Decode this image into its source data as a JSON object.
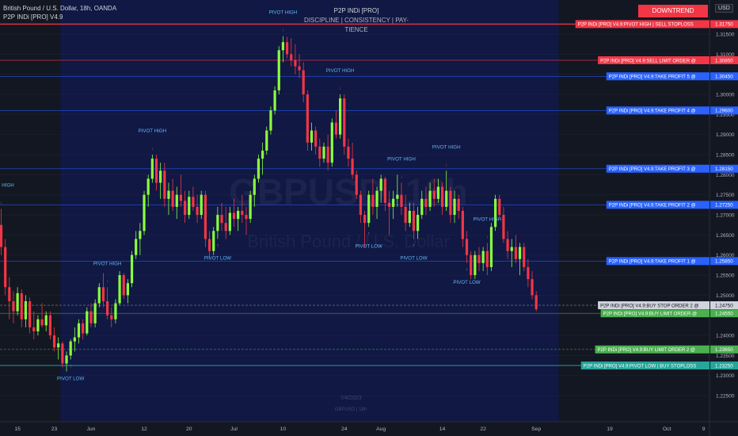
{
  "header": {
    "symbol_line": "British Pound / U.S. Dollar, 18h, OANDA",
    "indicator_line": "P2P INDi [PRO] V4.9",
    "indicator_title": "P2P INDi [PRO]",
    "motto": "DISCIPLINE  |  CONSISTENCY  |  PAY-TIENCE",
    "trend_badge": "DOWNTREND",
    "currency": "USD"
  },
  "colors": {
    "background": "#131722",
    "highlight": "#0e1a5e",
    "bull": "#8bff3c",
    "bear": "#f23645",
    "downtrend": "#f23645",
    "tp_blue": "#2962ff",
    "buy_green": "#4caf50",
    "buy_stoploss_teal": "#26a69a"
  },
  "chart_data": {
    "type": "candlestick",
    "symbol": "GBPUSD",
    "timeframe": "18h",
    "watermark": "GBPUSD, 18h",
    "watermark_sub": "British Pound / U.S. Dollar",
    "footer_date": "7/4/2023",
    "footer_sub": "GBPUSD | 18h",
    "ylim": [
      1.2185,
      1.3235
    ],
    "y_ticks": [
      "1.31500",
      "1.31000",
      "1.30500",
      "1.30000",
      "1.29500",
      "1.29000",
      "1.28500",
      "1.28000",
      "1.27500",
      "1.27000",
      "1.26500",
      "1.26000",
      "1.25500",
      "1.25000",
      "1.24500",
      "1.24000",
      "1.23500",
      "1.23000",
      "1.22500"
    ],
    "x_ticks": [
      {
        "label": "15",
        "i": 4
      },
      {
        "label": "23",
        "i": 13
      },
      {
        "label": "Jun",
        "i": 22
      },
      {
        "label": "12",
        "i": 35
      },
      {
        "label": "20",
        "i": 46
      },
      {
        "label": "Jul",
        "i": 57
      },
      {
        "label": "10",
        "i": 69
      },
      {
        "label": "24",
        "i": 84
      },
      {
        "label": "Aug",
        "i": 93
      },
      {
        "label": "14",
        "i": 108
      },
      {
        "label": "22",
        "i": 118
      },
      {
        "label": "Sep",
        "i": 131
      },
      {
        "label": "19",
        "i": 149
      },
      {
        "label": "Oct",
        "i": 163
      },
      {
        "label": "9",
        "i": 172
      }
    ],
    "highlight_range": [
      15,
      136
    ],
    "candles": [
      {
        "o": 1.2675,
        "h": 1.2715,
        "l": 1.26,
        "c": 1.262
      },
      {
        "o": 1.262,
        "h": 1.264,
        "l": 1.25,
        "c": 1.252
      },
      {
        "o": 1.252,
        "h": 1.2545,
        "l": 1.244,
        "c": 1.2485
      },
      {
        "o": 1.2485,
        "h": 1.251,
        "l": 1.243,
        "c": 1.246
      },
      {
        "o": 1.246,
        "h": 1.252,
        "l": 1.245,
        "c": 1.2505
      },
      {
        "o": 1.2505,
        "h": 1.2515,
        "l": 1.242,
        "c": 1.244
      },
      {
        "o": 1.244,
        "h": 1.25,
        "l": 1.242,
        "c": 1.2485
      },
      {
        "o": 1.2485,
        "h": 1.2495,
        "l": 1.2405,
        "c": 1.242
      },
      {
        "o": 1.242,
        "h": 1.246,
        "l": 1.239,
        "c": 1.241
      },
      {
        "o": 1.241,
        "h": 1.245,
        "l": 1.24,
        "c": 1.244
      },
      {
        "o": 1.244,
        "h": 1.248,
        "l": 1.242,
        "c": 1.2425
      },
      {
        "o": 1.2425,
        "h": 1.246,
        "l": 1.241,
        "c": 1.245
      },
      {
        "o": 1.245,
        "h": 1.246,
        "l": 1.239,
        "c": 1.24
      },
      {
        "o": 1.24,
        "h": 1.242,
        "l": 1.236,
        "c": 1.237
      },
      {
        "o": 1.237,
        "h": 1.2395,
        "l": 1.234,
        "c": 1.238
      },
      {
        "o": 1.238,
        "h": 1.2385,
        "l": 1.232,
        "c": 1.233
      },
      {
        "o": 1.233,
        "h": 1.236,
        "l": 1.231,
        "c": 1.235
      },
      {
        "o": 1.235,
        "h": 1.239,
        "l": 1.234,
        "c": 1.2385
      },
      {
        "o": 1.2385,
        "h": 1.242,
        "l": 1.236,
        "c": 1.2395
      },
      {
        "o": 1.2395,
        "h": 1.244,
        "l": 1.238,
        "c": 1.243
      },
      {
        "o": 1.243,
        "h": 1.244,
        "l": 1.239,
        "c": 1.2405
      },
      {
        "o": 1.2405,
        "h": 1.247,
        "l": 1.24,
        "c": 1.246
      },
      {
        "o": 1.246,
        "h": 1.248,
        "l": 1.242,
        "c": 1.243
      },
      {
        "o": 1.243,
        "h": 1.249,
        "l": 1.242,
        "c": 1.248
      },
      {
        "o": 1.248,
        "h": 1.253,
        "l": 1.247,
        "c": 1.252
      },
      {
        "o": 1.252,
        "h": 1.2555,
        "l": 1.247,
        "c": 1.2485
      },
      {
        "o": 1.2485,
        "h": 1.252,
        "l": 1.244,
        "c": 1.245
      },
      {
        "o": 1.245,
        "h": 1.247,
        "l": 1.242,
        "c": 1.244
      },
      {
        "o": 1.244,
        "h": 1.249,
        "l": 1.243,
        "c": 1.248
      },
      {
        "o": 1.248,
        "h": 1.256,
        "l": 1.2475,
        "c": 1.255
      },
      {
        "o": 1.255,
        "h": 1.2555,
        "l": 1.249,
        "c": 1.25
      },
      {
        "o": 1.25,
        "h": 1.254,
        "l": 1.248,
        "c": 1.253
      },
      {
        "o": 1.253,
        "h": 1.261,
        "l": 1.252,
        "c": 1.26
      },
      {
        "o": 1.26,
        "h": 1.266,
        "l": 1.259,
        "c": 1.264
      },
      {
        "o": 1.264,
        "h": 1.268,
        "l": 1.26,
        "c": 1.266
      },
      {
        "o": 1.266,
        "h": 1.276,
        "l": 1.265,
        "c": 1.275
      },
      {
        "o": 1.275,
        "h": 1.28,
        "l": 1.272,
        "c": 1.279
      },
      {
        "o": 1.279,
        "h": 1.285,
        "l": 1.278,
        "c": 1.284
      },
      {
        "o": 1.284,
        "h": 1.285,
        "l": 1.276,
        "c": 1.278
      },
      {
        "o": 1.278,
        "h": 1.283,
        "l": 1.274,
        "c": 1.281
      },
      {
        "o": 1.281,
        "h": 1.283,
        "l": 1.272,
        "c": 1.274
      },
      {
        "o": 1.274,
        "h": 1.278,
        "l": 1.27,
        "c": 1.276
      },
      {
        "o": 1.276,
        "h": 1.279,
        "l": 1.271,
        "c": 1.272
      },
      {
        "o": 1.272,
        "h": 1.277,
        "l": 1.269,
        "c": 1.275
      },
      {
        "o": 1.275,
        "h": 1.28,
        "l": 1.272,
        "c": 1.2735
      },
      {
        "o": 1.2735,
        "h": 1.276,
        "l": 1.268,
        "c": 1.27
      },
      {
        "o": 1.27,
        "h": 1.276,
        "l": 1.269,
        "c": 1.2745
      },
      {
        "o": 1.2745,
        "h": 1.277,
        "l": 1.271,
        "c": 1.272
      },
      {
        "o": 1.272,
        "h": 1.275,
        "l": 1.268,
        "c": 1.27
      },
      {
        "o": 1.27,
        "h": 1.276,
        "l": 1.269,
        "c": 1.275
      },
      {
        "o": 1.275,
        "h": 1.276,
        "l": 1.262,
        "c": 1.264
      },
      {
        "o": 1.264,
        "h": 1.266,
        "l": 1.259,
        "c": 1.261
      },
      {
        "o": 1.261,
        "h": 1.267,
        "l": 1.26,
        "c": 1.266
      },
      {
        "o": 1.266,
        "h": 1.272,
        "l": 1.264,
        "c": 1.27
      },
      {
        "o": 1.27,
        "h": 1.273,
        "l": 1.266,
        "c": 1.268
      },
      {
        "o": 1.268,
        "h": 1.272,
        "l": 1.264,
        "c": 1.266
      },
      {
        "o": 1.266,
        "h": 1.272,
        "l": 1.265,
        "c": 1.2705
      },
      {
        "o": 1.2705,
        "h": 1.274,
        "l": 1.267,
        "c": 1.269
      },
      {
        "o": 1.269,
        "h": 1.272,
        "l": 1.266,
        "c": 1.271
      },
      {
        "o": 1.271,
        "h": 1.275,
        "l": 1.268,
        "c": 1.27
      },
      {
        "o": 1.27,
        "h": 1.272,
        "l": 1.265,
        "c": 1.269
      },
      {
        "o": 1.269,
        "h": 1.276,
        "l": 1.268,
        "c": 1.275
      },
      {
        "o": 1.275,
        "h": 1.28,
        "l": 1.272,
        "c": 1.279
      },
      {
        "o": 1.279,
        "h": 1.285,
        "l": 1.278,
        "c": 1.284
      },
      {
        "o": 1.284,
        "h": 1.288,
        "l": 1.28,
        "c": 1.286
      },
      {
        "o": 1.286,
        "h": 1.292,
        "l": 1.285,
        "c": 1.291
      },
      {
        "o": 1.291,
        "h": 1.297,
        "l": 1.29,
        "c": 1.296
      },
      {
        "o": 1.296,
        "h": 1.302,
        "l": 1.295,
        "c": 1.301
      },
      {
        "o": 1.301,
        "h": 1.312,
        "l": 1.3,
        "c": 1.311
      },
      {
        "o": 1.311,
        "h": 1.3145,
        "l": 1.308,
        "c": 1.313
      },
      {
        "o": 1.313,
        "h": 1.3143,
        "l": 1.309,
        "c": 1.31
      },
      {
        "o": 1.31,
        "h": 1.314,
        "l": 1.307,
        "c": 1.3085
      },
      {
        "o": 1.3085,
        "h": 1.3125,
        "l": 1.305,
        "c": 1.307
      },
      {
        "o": 1.307,
        "h": 1.31,
        "l": 1.304,
        "c": 1.306
      },
      {
        "o": 1.306,
        "h": 1.308,
        "l": 1.298,
        "c": 1.3
      },
      {
        "o": 1.3,
        "h": 1.301,
        "l": 1.286,
        "c": 1.288
      },
      {
        "o": 1.288,
        "h": 1.293,
        "l": 1.286,
        "c": 1.291
      },
      {
        "o": 1.291,
        "h": 1.292,
        "l": 1.285,
        "c": 1.287
      },
      {
        "o": 1.287,
        "h": 1.289,
        "l": 1.282,
        "c": 1.284
      },
      {
        "o": 1.284,
        "h": 1.288,
        "l": 1.283,
        "c": 1.287
      },
      {
        "o": 1.287,
        "h": 1.29,
        "l": 1.281,
        "c": 1.283
      },
      {
        "o": 1.283,
        "h": 1.294,
        "l": 1.282,
        "c": 1.293
      },
      {
        "o": 1.293,
        "h": 1.296,
        "l": 1.289,
        "c": 1.29
      },
      {
        "o": 1.29,
        "h": 1.3,
        "l": 1.289,
        "c": 1.299
      },
      {
        "o": 1.299,
        "h": 1.3,
        "l": 1.285,
        "c": 1.287
      },
      {
        "o": 1.287,
        "h": 1.289,
        "l": 1.282,
        "c": 1.284
      },
      {
        "o": 1.284,
        "h": 1.288,
        "l": 1.279,
        "c": 1.28
      },
      {
        "o": 1.28,
        "h": 1.281,
        "l": 1.274,
        "c": 1.275
      },
      {
        "o": 1.275,
        "h": 1.276,
        "l": 1.268,
        "c": 1.27
      },
      {
        "o": 1.27,
        "h": 1.271,
        "l": 1.262,
        "c": 1.268
      },
      {
        "o": 1.268,
        "h": 1.276,
        "l": 1.267,
        "c": 1.275
      },
      {
        "o": 1.275,
        "h": 1.279,
        "l": 1.27,
        "c": 1.272
      },
      {
        "o": 1.272,
        "h": 1.277,
        "l": 1.269,
        "c": 1.276
      },
      {
        "o": 1.276,
        "h": 1.28,
        "l": 1.273,
        "c": 1.279
      },
      {
        "o": 1.279,
        "h": 1.2795,
        "l": 1.271,
        "c": 1.273
      },
      {
        "o": 1.273,
        "h": 1.276,
        "l": 1.265,
        "c": 1.272
      },
      {
        "o": 1.272,
        "h": 1.276,
        "l": 1.269,
        "c": 1.274
      },
      {
        "o": 1.274,
        "h": 1.28,
        "l": 1.272,
        "c": 1.275
      },
      {
        "o": 1.275,
        "h": 1.278,
        "l": 1.27,
        "c": 1.272
      },
      {
        "o": 1.272,
        "h": 1.275,
        "l": 1.266,
        "c": 1.268
      },
      {
        "o": 1.268,
        "h": 1.273,
        "l": 1.267,
        "c": 1.271
      },
      {
        "o": 1.271,
        "h": 1.273,
        "l": 1.264,
        "c": 1.266
      },
      {
        "o": 1.266,
        "h": 1.272,
        "l": 1.264,
        "c": 1.27
      },
      {
        "o": 1.27,
        "h": 1.276,
        "l": 1.269,
        "c": 1.274
      },
      {
        "o": 1.274,
        "h": 1.277,
        "l": 1.27,
        "c": 1.272
      },
      {
        "o": 1.272,
        "h": 1.278,
        "l": 1.271,
        "c": 1.276
      },
      {
        "o": 1.276,
        "h": 1.279,
        "l": 1.272,
        "c": 1.274
      },
      {
        "o": 1.274,
        "h": 1.279,
        "l": 1.273,
        "c": 1.277
      },
      {
        "o": 1.277,
        "h": 1.278,
        "l": 1.27,
        "c": 1.272
      },
      {
        "o": 1.272,
        "h": 1.281,
        "l": 1.271,
        "c": 1.276
      },
      {
        "o": 1.276,
        "h": 1.277,
        "l": 1.268,
        "c": 1.27
      },
      {
        "o": 1.27,
        "h": 1.276,
        "l": 1.268,
        "c": 1.274
      },
      {
        "o": 1.274,
        "h": 1.275,
        "l": 1.269,
        "c": 1.271
      },
      {
        "o": 1.271,
        "h": 1.272,
        "l": 1.262,
        "c": 1.264
      },
      {
        "o": 1.264,
        "h": 1.266,
        "l": 1.258,
        "c": 1.26
      },
      {
        "o": 1.26,
        "h": 1.261,
        "l": 1.254,
        "c": 1.255
      },
      {
        "o": 1.255,
        "h": 1.261,
        "l": 1.254,
        "c": 1.26
      },
      {
        "o": 1.26,
        "h": 1.262,
        "l": 1.256,
        "c": 1.258
      },
      {
        "o": 1.258,
        "h": 1.262,
        "l": 1.256,
        "c": 1.261
      },
      {
        "o": 1.261,
        "h": 1.263,
        "l": 1.255,
        "c": 1.257
      },
      {
        "o": 1.257,
        "h": 1.268,
        "l": 1.256,
        "c": 1.267
      },
      {
        "o": 1.267,
        "h": 1.275,
        "l": 1.266,
        "c": 1.274
      },
      {
        "o": 1.274,
        "h": 1.275,
        "l": 1.269,
        "c": 1.27
      },
      {
        "o": 1.27,
        "h": 1.272,
        "l": 1.263,
        "c": 1.264
      },
      {
        "o": 1.264,
        "h": 1.266,
        "l": 1.259,
        "c": 1.261
      },
      {
        "o": 1.261,
        "h": 1.264,
        "l": 1.257,
        "c": 1.262
      },
      {
        "o": 1.262,
        "h": 1.265,
        "l": 1.258,
        "c": 1.259
      },
      {
        "o": 1.259,
        "h": 1.263,
        "l": 1.255,
        "c": 1.262
      },
      {
        "o": 1.262,
        "h": 1.263,
        "l": 1.256,
        "c": 1.257
      },
      {
        "o": 1.257,
        "h": 1.259,
        "l": 1.252,
        "c": 1.254
      },
      {
        "o": 1.254,
        "h": 1.256,
        "l": 1.249,
        "c": 1.25
      },
      {
        "o": 1.25,
        "h": 1.251,
        "l": 1.246,
        "c": 1.2465
      }
    ]
  },
  "levels": [
    {
      "price": 1.3175,
      "label": "P2P INDi [PRO] V4.9:PIVOT HIGH | SELL STOPLOSS",
      "price_text": "1.31750",
      "color": "#f23645",
      "line_width": 1.6,
      "dash": ""
    },
    {
      "price": 1.3085,
      "label": "P2P INDi [PRO] V4.9:SELL LIMIT ORDER @",
      "price_text": "1.30850",
      "color": "#f23645",
      "line_width": 0.8,
      "dash": ""
    },
    {
      "price": 1.3045,
      "label": "P2P INDi [PRO] V4.9:TAKE PROFIT 5 @",
      "price_text": "1.30450",
      "color": "#2962ff",
      "line_width": 0.6,
      "dash": ""
    },
    {
      "price": 1.296,
      "label": "P2P INDi [PRO] V4.9:TAKE PROFIT 4 @",
      "price_text": "1.29600",
      "color": "#2962ff",
      "line_width": 0.6,
      "dash": ""
    },
    {
      "price": 1.2815,
      "label": "P2P INDi [PRO] V4.9:TAKE PROFIT 3 @",
      "price_text": "1.28150",
      "color": "#2962ff",
      "line_width": 0.6,
      "dash": ""
    },
    {
      "price": 1.2725,
      "label": "P2P INDi [PRO] V4.9:TAKE PROFIT 2 @",
      "price_text": "1.27250",
      "color": "#2962ff",
      "line_width": 0.6,
      "dash": ""
    },
    {
      "price": 1.2585,
      "label": "P2P INDi [PRO] V4.9:TAKE PROFIT 1 @",
      "price_text": "1.25850",
      "color": "#2962ff",
      "line_width": 0.6,
      "dash": ""
    },
    {
      "price": 1.2475,
      "label": "P2P INDi [PRO] V4.9:BUY STOP ORDER 2 @",
      "price_text": "1.24750",
      "color": "#9e9e9e",
      "line_width": 0.6,
      "dash": "3,2"
    },
    {
      "price": 1.2455,
      "label": "P2P INDi [PRO] V4.9:BUY LIMIT ORDER @",
      "price_text": "1.24550",
      "color": "#4caf50",
      "line_width": 0.6,
      "dash": ""
    },
    {
      "price": 1.2365,
      "label": "P2P INDi [PRO] V4.9:BUY LIMIT ORDER 2 @",
      "price_text": "1.23650",
      "color": "#4caf50",
      "line_width": 0.6,
      "dash": "3,2"
    },
    {
      "price": 1.2325,
      "label": "P2P INDi [PRO] V4.9:PIVOT LOW | BUY STOPLOSS",
      "price_text": "1.23250",
      "color": "#26a69a",
      "line_width": 1.2,
      "dash": ""
    }
  ],
  "pivots": [
    {
      "i": 0,
      "text": "HIGH",
      "kind": "high"
    },
    {
      "i": 26,
      "text": "PIVOT HIGH",
      "kind": "high"
    },
    {
      "i": 37,
      "text": "PIVOT HIGH",
      "kind": "high"
    },
    {
      "i": 69,
      "text": "PIVOT HIGH",
      "kind": "high"
    },
    {
      "i": 83,
      "text": "PIVOT HIGH",
      "kind": "high"
    },
    {
      "i": 98,
      "text": "PIVOT HIGH",
      "kind": "high"
    },
    {
      "i": 109,
      "text": "PIVOT HIGH",
      "kind": "high"
    },
    {
      "i": 119,
      "text": "PIVOT HIGH",
      "kind": "high"
    },
    {
      "i": 17,
      "text": "PIVOT LOW",
      "kind": "low"
    },
    {
      "i": 53,
      "text": "PIVOT LOW",
      "kind": "low"
    },
    {
      "i": 90,
      "text": "PIVOT LOW",
      "kind": "low"
    },
    {
      "i": 101,
      "text": "PIVOT LOW",
      "kind": "low"
    },
    {
      "i": 114,
      "text": "PIVOT LOW",
      "kind": "low"
    }
  ]
}
